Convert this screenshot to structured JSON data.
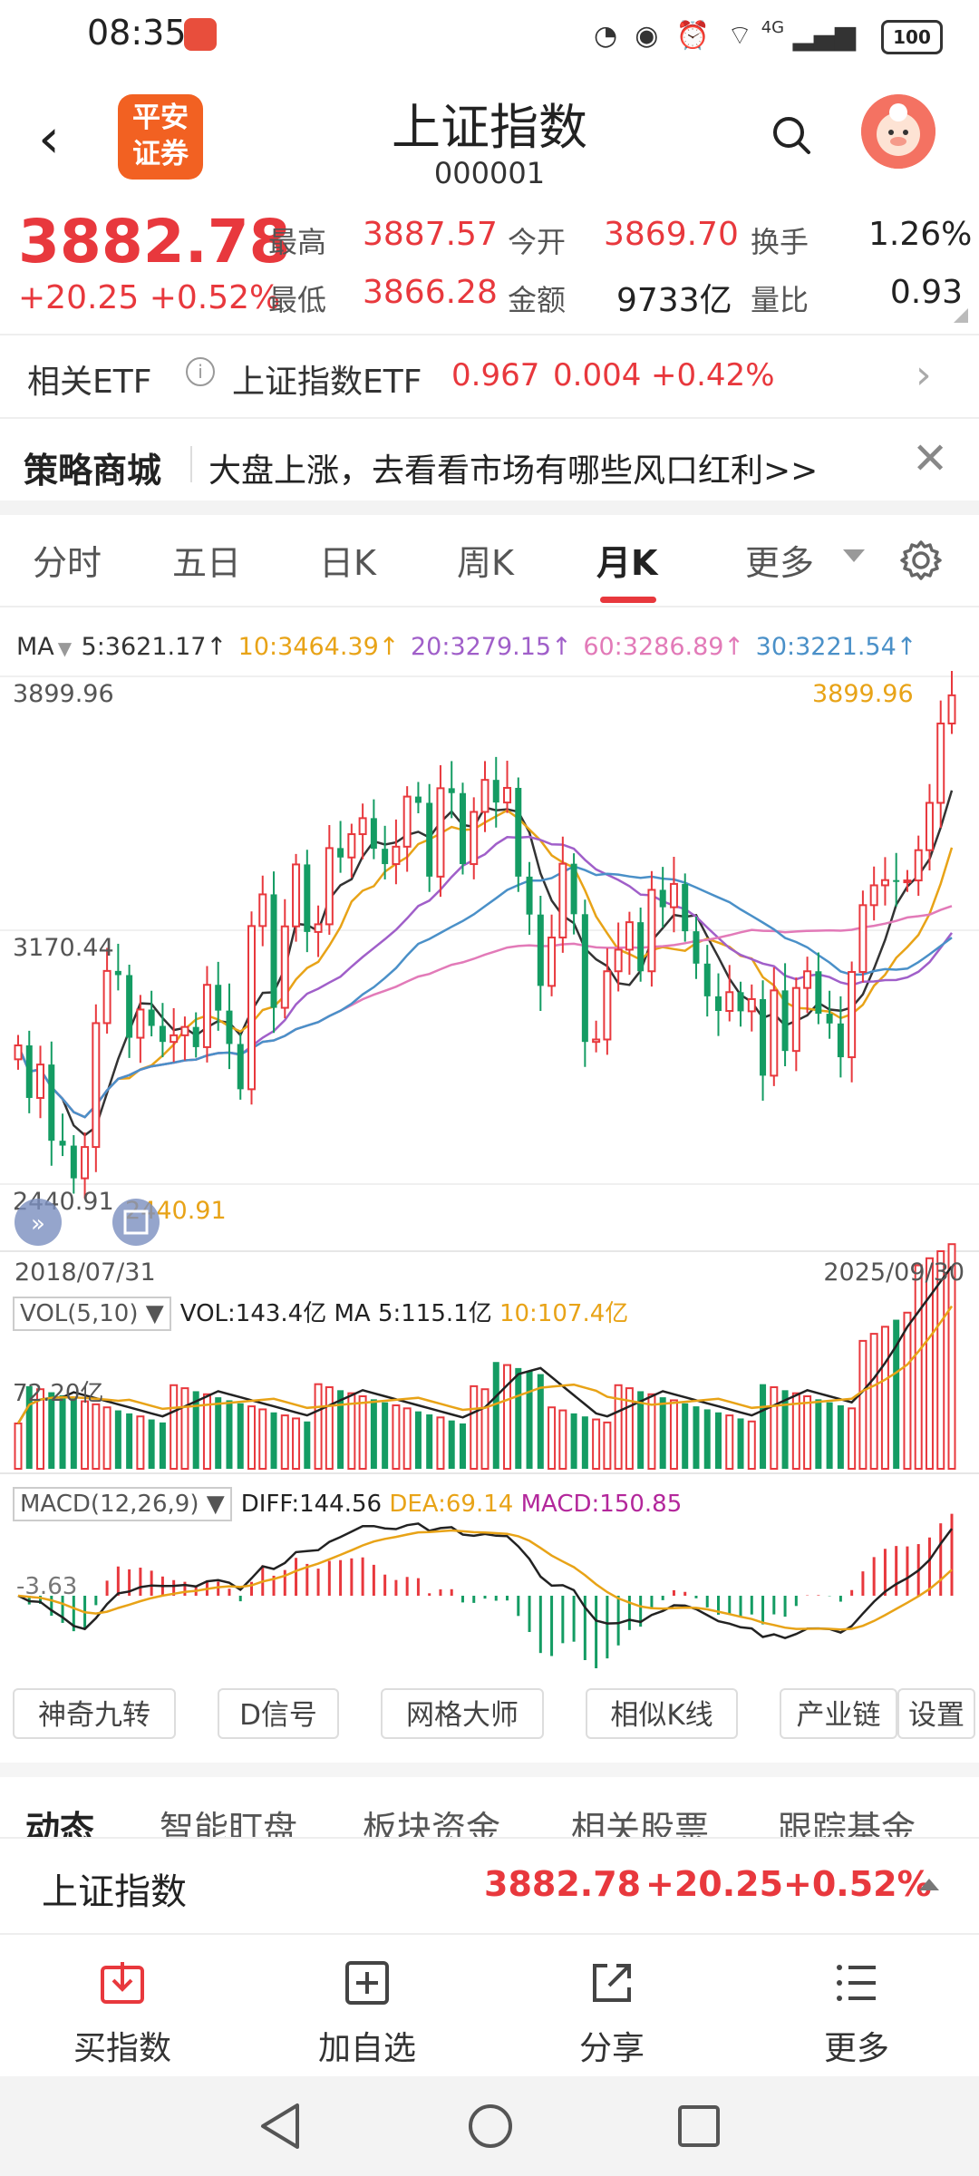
{
  "status_bar": {
    "time": "08:35",
    "network": "4G",
    "battery": "100"
  },
  "header": {
    "title": "上证指数",
    "code": "000001",
    "logo_text": [
      "平安",
      "证券"
    ]
  },
  "quote": {
    "price": "3882.78",
    "change": "+20.25",
    "change_pct": "+0.52%",
    "stats": [
      {
        "label": "最高",
        "value": "3887.57",
        "color": "red"
      },
      {
        "label": "今开",
        "value": "3869.70",
        "color": "red"
      },
      {
        "label": "换手",
        "value": "1.26%",
        "color": "black"
      },
      {
        "label": "最低",
        "value": "3866.28",
        "color": "red"
      },
      {
        "label": "金额",
        "value": "9733亿",
        "color": "black"
      },
      {
        "label": "量比",
        "value": "0.93",
        "color": "black"
      }
    ]
  },
  "etf": {
    "label": "相关ETF",
    "info_icon": "i",
    "name": "上证指数ETF",
    "price": "0.967",
    "change": "0.004",
    "change_pct": "+0.42%"
  },
  "strategy": {
    "title": "策略商城",
    "text": "大盘上涨，去看看市场有哪些风口红利>>"
  },
  "tabs": [
    "分时",
    "五日",
    "日K",
    "周K",
    "月K",
    "更多"
  ],
  "active_tab": "月K",
  "ma": {
    "label": "MA",
    "items": [
      {
        "text": "5:3621.17↑",
        "color": "#333333"
      },
      {
        "text": "10:3464.39↑",
        "color": "#e8a317"
      },
      {
        "text": "20:3279.15↑",
        "color": "#a05fc9"
      },
      {
        "text": "60:3286.89↑",
        "color": "#e27ab8"
      },
      {
        "text": "30:3221.54↑",
        "color": "#4a90c8"
      }
    ]
  },
  "chart_labels": {
    "y_top": "3899.96",
    "y_mid": "3170.44",
    "y_low": "2440.91",
    "max_label": "3899.96",
    "min_label": "2440.91",
    "date_start": "2018/07/31",
    "date_end": "2025/09/30"
  },
  "volume": {
    "selector": "VOL(5,10)",
    "vol": "VOL:143.4亿",
    "ma5": "MA 5:115.1亿",
    "ma10": "10:107.4亿",
    "axis_label": "72.20亿"
  },
  "macd": {
    "selector": "MACD(12,26,9)",
    "diff": "DIFF:144.56",
    "dea": "DEA:69.14",
    "macd": "MACD:150.85",
    "axis_label": "-3.63"
  },
  "tools": [
    "神奇九转",
    "D信号",
    "网格大师",
    "相似K线",
    "产业链",
    "设置"
  ],
  "subtabs": [
    "动态",
    "智能盯盘",
    "板块资金",
    "相关股票",
    "跟踪基金"
  ],
  "bottom_quote": {
    "name": "上证指数",
    "price": "3882.78",
    "change": "+20.25",
    "change_pct": "+0.52%"
  },
  "actions": [
    {
      "label": "买指数",
      "icon": "download-icon"
    },
    {
      "label": "加自选",
      "icon": "add-watchlist-icon"
    },
    {
      "label": "分享",
      "icon": "share-icon"
    },
    {
      "label": "更多",
      "icon": "menu-icon"
    }
  ],
  "colors": {
    "up": "#e8383d",
    "down": "#149c63",
    "accent": "#e8383d"
  },
  "chart_data": {
    "type": "candlestick",
    "period": "monthly",
    "x_range": [
      "2018/07/31",
      "2025/09/30"
    ],
    "y_labels": [
      3899.96,
      3170.44,
      2440.91
    ],
    "last_close": 3882.78,
    "ma": {
      "MA5": 3621.17,
      "MA10": 3464.39,
      "MA20": 3279.15,
      "MA60": 3286.89,
      "MA30": 3221.54
    },
    "volume": {
      "VOL": "143.4亿",
      "MA5": "115.1亿",
      "MA10": "107.4亿"
    },
    "macd": {
      "DIFF": 144.56,
      "DEA": 69.14,
      "MACD": 150.85
    }
  }
}
